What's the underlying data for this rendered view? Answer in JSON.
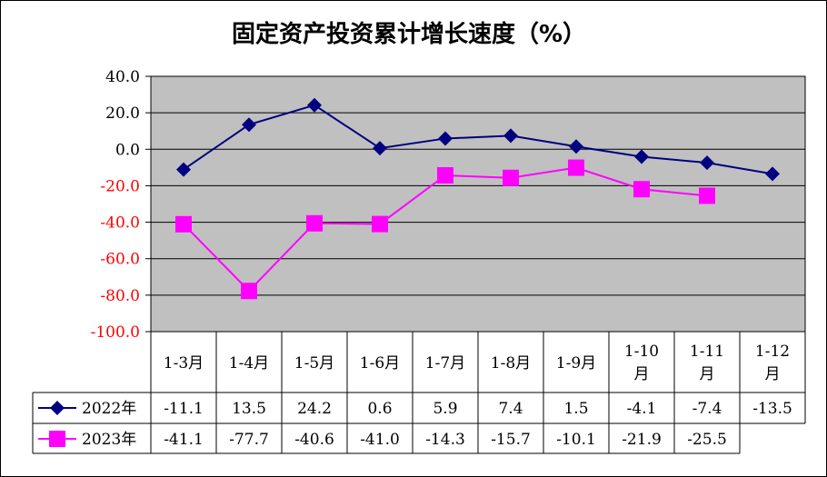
{
  "chart_data": {
    "type": "line",
    "title": "固定资产投资累计增长速度（%）",
    "categories": [
      [
        "1-3月"
      ],
      [
        "1-4月"
      ],
      [
        "1-5月"
      ],
      [
        "1-6月"
      ],
      [
        "1-7月"
      ],
      [
        "1-8月"
      ],
      [
        "1-9月"
      ],
      [
        "1-10",
        "月"
      ],
      [
        "1-11",
        "月"
      ],
      [
        "1-12",
        "月"
      ]
    ],
    "ylim": [
      -100,
      40
    ],
    "yticks": [
      40,
      20,
      0,
      -20,
      -40,
      -60,
      -80,
      -100
    ],
    "ytick_labels": [
      "40.0",
      "20.0",
      "0.0",
      "-20.0",
      "-40.0",
      "-60.0",
      "-80.0",
      "-100.0"
    ],
    "ytick_colors": {
      "positive": "#000000",
      "negative": "#ff0000"
    },
    "grid": true,
    "plot_background": "#c0c0c0",
    "legend": "data-table",
    "series": [
      {
        "name": "2022年",
        "color": "#000080",
        "marker": "diamond",
        "values": [
          -11.1,
          13.5,
          24.2,
          0.6,
          5.9,
          7.4,
          1.5,
          -4.1,
          -7.4,
          -13.5
        ],
        "labels": [
          "-11.1",
          "13.5",
          "24.2",
          "0.6",
          "5.9",
          "7.4",
          "1.5",
          "-4.1",
          "-7.4",
          "-13.5"
        ]
      },
      {
        "name": "2023年",
        "color": "#ff00ff",
        "marker": "square",
        "values": [
          -41.1,
          -77.7,
          -40.6,
          -41.0,
          -14.3,
          -15.7,
          -10.1,
          -21.9,
          -25.5,
          null
        ],
        "labels": [
          "-41.1",
          "-77.7",
          "-40.6",
          "-41.0",
          "-14.3",
          "-15.7",
          "-10.1",
          "-21.9",
          "-25.5",
          ""
        ]
      }
    ]
  }
}
